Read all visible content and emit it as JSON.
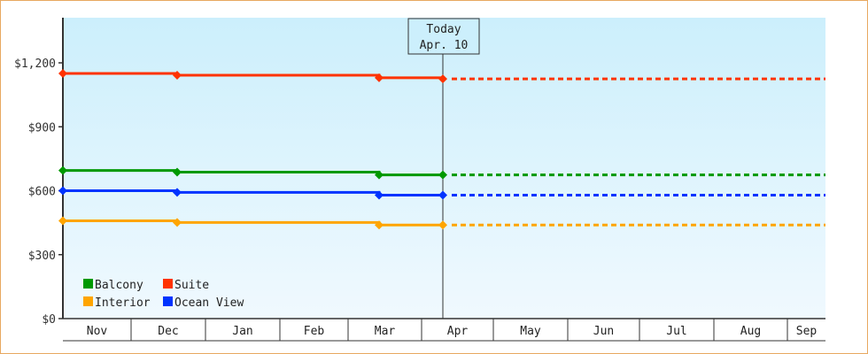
{
  "chart_data": {
    "type": "line",
    "title": "",
    "xlabel": "",
    "ylabel": "",
    "ylim": [
      0,
      1400
    ],
    "y_ticks": [
      "$0",
      "$300",
      "$600",
      "$900",
      "$1,200"
    ],
    "y_tick_values": [
      0,
      300,
      600,
      900,
      1200
    ],
    "categories": [
      "Nov",
      "Dec",
      "Jan",
      "Feb",
      "Mar",
      "Apr",
      "May",
      "Jun",
      "Jul",
      "Aug",
      "Sep"
    ],
    "today_marker": {
      "line1": "Today",
      "line2": "Apr. 10"
    },
    "legend_position": "bottom-left inside",
    "series": [
      {
        "name": "Balcony",
        "color": "#009900",
        "points": [
          [
            "Nov 1",
            695
          ],
          [
            "Dec 1",
            687
          ],
          [
            "Mar 1",
            674
          ],
          [
            "Apr 10",
            674
          ]
        ],
        "projected_to": "Sep"
      },
      {
        "name": "Suite",
        "color": "#ff3300",
        "points": [
          [
            "Nov 1",
            1150
          ],
          [
            "Dec 1",
            1142
          ],
          [
            "Mar 1",
            1130
          ],
          [
            "Apr 10",
            1125
          ]
        ],
        "projected_to": "Sep"
      },
      {
        "name": "Interior",
        "color": "#ffa500",
        "points": [
          [
            "Nov 1",
            459
          ],
          [
            "Dec 1",
            451
          ],
          [
            "Mar 1",
            439
          ],
          [
            "Apr 10",
            439
          ]
        ],
        "projected_to": "Sep"
      },
      {
        "name": "Ocean View",
        "color": "#0033ff",
        "points": [
          [
            "Nov 1",
            600
          ],
          [
            "Dec 1",
            592
          ],
          [
            "Mar 1",
            579
          ],
          [
            "Apr 10",
            579
          ]
        ],
        "projected_to": "Sep"
      }
    ]
  },
  "legend": [
    {
      "label": "Balcony",
      "color": "#009900"
    },
    {
      "label": "Suite",
      "color": "#ff3300"
    },
    {
      "label": "Interior",
      "color": "#ffa500"
    },
    {
      "label": "Ocean View",
      "color": "#0033ff"
    }
  ]
}
